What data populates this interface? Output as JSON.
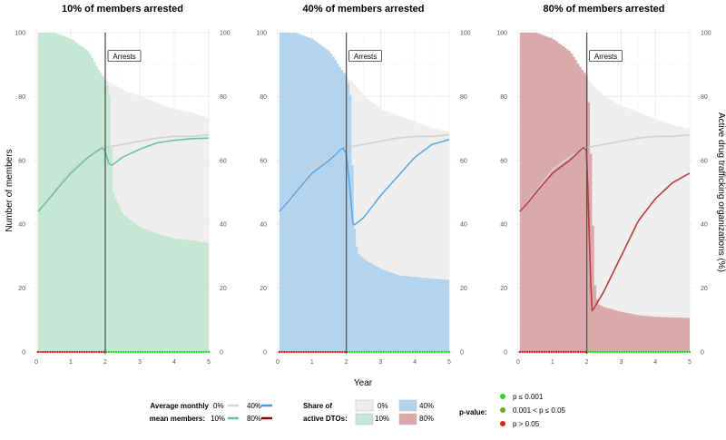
{
  "chart_data": [
    {
      "type": "area",
      "title": "10% of members arrested",
      "annotation": "Arrests",
      "arrest_year": 2,
      "xlim": [
        0,
        5
      ],
      "ylim_left": [
        0,
        100
      ],
      "ylim_right": [
        0,
        100
      ],
      "x_ticks": [
        "0",
        "1",
        "2",
        "3",
        "4",
        "5"
      ],
      "y_ticks": [
        "0",
        "20",
        "40",
        "60",
        "80",
        "100"
      ],
      "color": "#66c2a4",
      "fill_color": "#c6e6d6",
      "series": [
        {
          "name": "0%",
          "role": "share_active_dtos_baseline",
          "x": [
            0.05,
            0.5,
            1.0,
            1.5,
            1.8,
            2.0,
            2.2,
            2.5,
            3.0,
            3.5,
            4.0,
            4.5,
            5.0
          ],
          "y": [
            100,
            100,
            98,
            94,
            88,
            85,
            84,
            82,
            80,
            78,
            76,
            75,
            73
          ]
        },
        {
          "name": "10%",
          "role": "share_active_dtos",
          "x": [
            0.05,
            0.5,
            1.0,
            1.5,
            1.8,
            2.0,
            2.1,
            2.2,
            2.5,
            3.0,
            3.5,
            4.0,
            4.5,
            5.0
          ],
          "y": [
            100,
            100,
            98,
            94,
            88,
            85,
            80,
            50,
            43,
            39,
            37,
            35.5,
            35,
            34
          ]
        },
        {
          "name": "0%",
          "role": "mean_members_baseline",
          "x": [
            0.05,
            0.5,
            1.0,
            1.5,
            2.0,
            2.5,
            3.0,
            3.5,
            4.0,
            4.5,
            5.0
          ],
          "y": [
            44,
            50,
            57,
            61,
            64,
            65,
            66,
            67,
            67.5,
            67.5,
            68
          ]
        },
        {
          "name": "10%",
          "role": "mean_members",
          "x": [
            0.05,
            0.3,
            0.6,
            1.0,
            1.5,
            1.9,
            2.0,
            2.1,
            2.2,
            2.5,
            3.0,
            3.5,
            4.0,
            4.5,
            5.0
          ],
          "y": [
            44,
            47,
            51,
            56,
            61,
            64,
            63,
            59,
            58.5,
            61,
            63.5,
            65.5,
            66.3,
            66.8,
            67
          ]
        }
      ]
    },
    {
      "type": "area",
      "title": "40% of members arrested",
      "annotation": "Arrests",
      "arrest_year": 2,
      "xlim": [
        0,
        5
      ],
      "ylim_left": [
        0,
        100
      ],
      "ylim_right": [
        0,
        100
      ],
      "x_ticks": [
        "0",
        "1",
        "2",
        "3",
        "4",
        "5"
      ],
      "y_ticks": [
        "0",
        "20",
        "40",
        "60",
        "80",
        "100"
      ],
      "color": "#5aa9e6",
      "fill_color": "#b3d4ef",
      "series": [
        {
          "name": "0%",
          "role": "share_active_dtos_baseline",
          "x": [
            0.05,
            0.5,
            1.0,
            1.5,
            1.8,
            2.0,
            2.2,
            2.5,
            3.0,
            3.5,
            4.0,
            4.5,
            5.0
          ],
          "y": [
            100,
            100,
            98,
            94,
            89,
            86,
            84,
            80,
            76,
            74,
            72,
            70,
            69
          ]
        },
        {
          "name": "40%",
          "role": "share_active_dtos",
          "x": [
            0.05,
            0.5,
            1.0,
            1.5,
            1.8,
            2.0,
            2.1,
            2.2,
            2.3,
            2.5,
            3.0,
            3.5,
            4.0,
            4.5,
            5.0
          ],
          "y": [
            100,
            100,
            98,
            94,
            89,
            86,
            80,
            40,
            31,
            29,
            26,
            24,
            23.5,
            23,
            22.5
          ]
        },
        {
          "name": "0%",
          "role": "mean_members_baseline",
          "x": [
            0.05,
            0.5,
            1.0,
            1.5,
            2.0,
            2.5,
            3.0,
            3.5,
            4.0,
            4.5,
            5.0
          ],
          "y": [
            44,
            50,
            57,
            61,
            64,
            65,
            66,
            67,
            67.5,
            67.5,
            68
          ]
        },
        {
          "name": "40%",
          "role": "mean_members",
          "x": [
            0.05,
            0.3,
            0.6,
            1.0,
            1.5,
            1.9,
            2.0,
            2.1,
            2.2,
            2.5,
            3.0,
            3.5,
            4.0,
            4.5,
            5.0
          ],
          "y": [
            44,
            47,
            51,
            56,
            60,
            64,
            62,
            52,
            39.5,
            42,
            49,
            55,
            61,
            65,
            66.5
          ]
        }
      ]
    },
    {
      "type": "area",
      "title": "80% of members arrested",
      "annotation": "Arrests",
      "arrest_year": 2,
      "xlim": [
        0,
        5
      ],
      "ylim_left": [
        0,
        100
      ],
      "ylim_right": [
        0,
        100
      ],
      "x_ticks": [
        "0",
        "1",
        "2",
        "3",
        "4",
        "5"
      ],
      "y_ticks": [
        "0",
        "20",
        "40",
        "60",
        "80",
        "100"
      ],
      "color": "#b83c3c",
      "fill_color": "#d9a9ab",
      "series": [
        {
          "name": "0%",
          "role": "share_active_dtos_baseline",
          "x": [
            0.05,
            0.5,
            1.0,
            1.5,
            1.8,
            2.0,
            2.2,
            2.5,
            3.0,
            3.5,
            4.0,
            4.5,
            5.0
          ],
          "y": [
            100,
            100,
            98,
            94,
            89,
            86,
            83,
            80,
            77,
            75,
            73,
            71,
            70
          ]
        },
        {
          "name": "80%",
          "role": "share_active_dtos",
          "x": [
            0.05,
            0.5,
            1.0,
            1.5,
            1.8,
            2.0,
            2.1,
            2.2,
            2.3,
            2.5,
            3.0,
            3.5,
            4.0,
            4.5,
            5.0
          ],
          "y": [
            100,
            100,
            98,
            94,
            89,
            86,
            60,
            22,
            15,
            14,
            12.5,
            11.5,
            11,
            10.8,
            10.7
          ]
        },
        {
          "name": "0%",
          "role": "mean_members_baseline",
          "x": [
            0.05,
            0.5,
            1.0,
            1.5,
            2.0,
            2.5,
            3.0,
            3.5,
            4.0,
            4.5,
            5.0
          ],
          "y": [
            44,
            50,
            57,
            61,
            64,
            65,
            66,
            67,
            67.5,
            67.5,
            68
          ]
        },
        {
          "name": "80%",
          "role": "mean_members",
          "x": [
            0.05,
            0.3,
            0.6,
            1.0,
            1.5,
            1.9,
            2.0,
            2.05,
            2.1,
            2.15,
            2.2,
            2.5,
            3.0,
            3.5,
            4.0,
            4.5,
            5.0
          ],
          "y": [
            44,
            47,
            51,
            56,
            60,
            64,
            63,
            45,
            25,
            13,
            13.5,
            19,
            30,
            41,
            48,
            53,
            56
          ]
        }
      ]
    }
  ],
  "axes": {
    "x_title": "Year",
    "y_left_title": "Number of members",
    "y_right_title": "Active drug trafficking organizations (%)"
  },
  "legend": {
    "members_title_line1": "Average monthly",
    "members_title_line2": "mean members:",
    "members_items": [
      {
        "label": "0%",
        "color": "#d3d3d3"
      },
      {
        "label": "40%",
        "color": "#3a9ee8"
      },
      {
        "label": "10%",
        "color": "#66c2a4"
      },
      {
        "label": "80%",
        "color": "#8b0000"
      }
    ],
    "dtos_title_line1": "Share of",
    "dtos_title_line2": "active DTOs:",
    "dtos_items": [
      {
        "label": "0%",
        "color": "#eeeeee"
      },
      {
        "label": "40%",
        "color": "#b3d4ef"
      },
      {
        "label": "10%",
        "color": "#c6e6d6"
      },
      {
        "label": "80%",
        "color": "#d9a9ab"
      }
    ],
    "pvalue_title": "p-value:",
    "pvalue_items": [
      {
        "label": "p ≤ 0.001",
        "color": "#22dd22"
      },
      {
        "label": "0.001 < p ≤ 0.05",
        "color": "#66aa22"
      },
      {
        "label": "p > 0.05",
        "color": "#dd2222"
      }
    ]
  },
  "baseline_fill": "#efefef",
  "baseline_line": "#d3d3d3"
}
